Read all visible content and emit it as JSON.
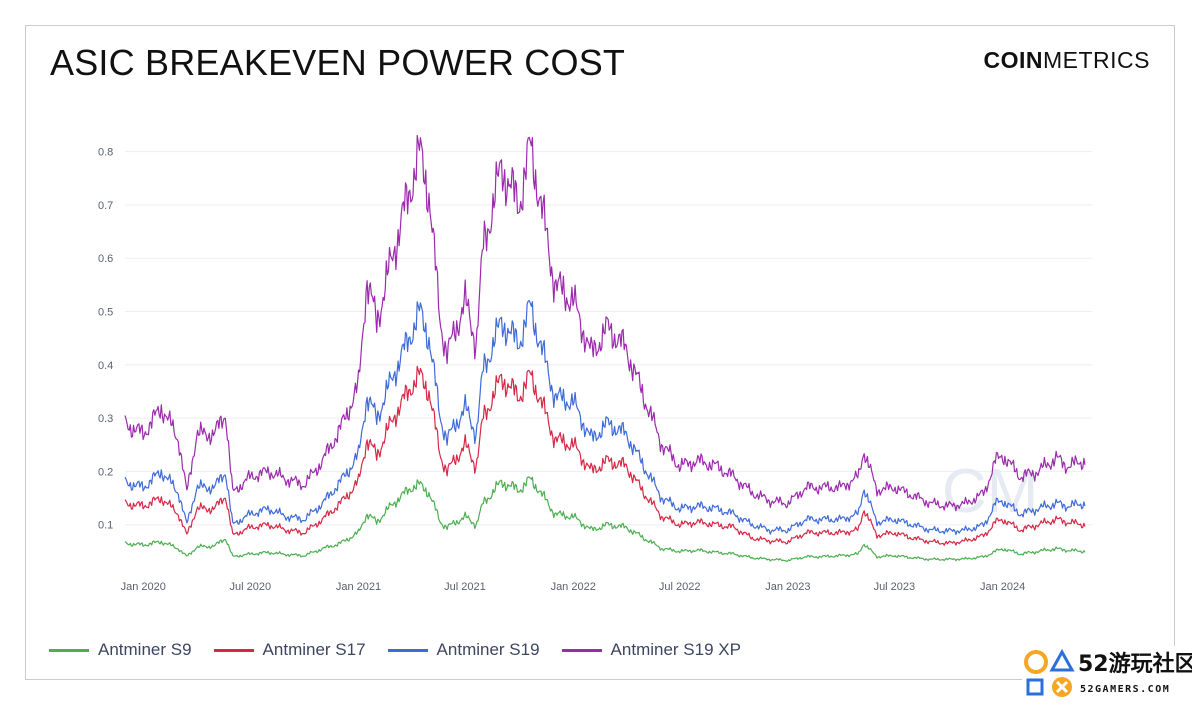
{
  "header": {
    "title": "ASIC BREAKEVEN POWER COST",
    "brand_bold": "COIN",
    "brand_light": "METRICS"
  },
  "chart_data": {
    "type": "line",
    "title": "ASIC BREAKEVEN POWER COST",
    "xlabel": "",
    "ylabel": "",
    "x_range": [
      "2019-12-01",
      "2024-06-01"
    ],
    "ylim": [
      0,
      0.85
    ],
    "y_ticks": [
      0.1,
      0.2,
      0.3,
      0.4,
      0.5,
      0.6,
      0.7,
      0.8
    ],
    "y_tick_labels": [
      "0.1",
      "0.2",
      "0.3",
      "0.4",
      "0.5",
      "0.6",
      "0.7",
      "0.8"
    ],
    "x_ticks": [
      "2020-01-01",
      "2020-07-01",
      "2021-01-01",
      "2021-07-01",
      "2022-01-01",
      "2022-07-01",
      "2023-01-01",
      "2023-07-01",
      "2024-01-01"
    ],
    "x_tick_labels": [
      "Jan 2020",
      "Jul 2020",
      "Jan 2021",
      "Jul 2021",
      "Jan 2022",
      "Jul 2022",
      "Jan 2023",
      "Jul 2023",
      "Jan 2024"
    ],
    "grid": true,
    "legend_position": "bottom",
    "dates": [
      "2019-12-01",
      "2020-01-01",
      "2020-02-01",
      "2020-03-01",
      "2020-03-15",
      "2020-04-01",
      "2020-05-01",
      "2020-05-20",
      "2020-06-01",
      "2020-07-01",
      "2020-08-01",
      "2020-09-01",
      "2020-10-01",
      "2020-11-01",
      "2020-12-01",
      "2021-01-01",
      "2021-01-15",
      "2021-02-01",
      "2021-03-01",
      "2021-04-01",
      "2021-04-15",
      "2021-05-01",
      "2021-05-20",
      "2021-06-01",
      "2021-07-01",
      "2021-07-20",
      "2021-08-01",
      "2021-09-01",
      "2021-10-01",
      "2021-10-20",
      "2021-11-01",
      "2021-12-01",
      "2022-01-01",
      "2022-02-01",
      "2022-03-01",
      "2022-04-01",
      "2022-05-01",
      "2022-06-01",
      "2022-07-01",
      "2022-08-01",
      "2022-09-01",
      "2022-10-01",
      "2022-11-01",
      "2022-12-01",
      "2023-01-01",
      "2023-02-01",
      "2023-03-01",
      "2023-04-01",
      "2023-05-01",
      "2023-05-10",
      "2023-06-01",
      "2023-07-01",
      "2023-08-01",
      "2023-09-01",
      "2023-10-01",
      "2023-11-01",
      "2023-12-01",
      "2023-12-20",
      "2024-01-01",
      "2024-02-01",
      "2024-03-01",
      "2024-04-01",
      "2024-04-20",
      "2024-05-20"
    ],
    "series": [
      {
        "name": "Antminer S9",
        "color": "#4caf50",
        "values": [
          0.065,
          0.062,
          0.068,
          0.055,
          0.04,
          0.058,
          0.06,
          0.075,
          0.04,
          0.045,
          0.048,
          0.044,
          0.042,
          0.055,
          0.065,
          0.085,
          0.12,
          0.105,
          0.14,
          0.17,
          0.175,
          0.16,
          0.105,
          0.095,
          0.115,
          0.1,
          0.14,
          0.18,
          0.165,
          0.185,
          0.17,
          0.12,
          0.115,
          0.09,
          0.1,
          0.095,
          0.075,
          0.055,
          0.05,
          0.052,
          0.048,
          0.045,
          0.038,
          0.035,
          0.033,
          0.04,
          0.04,
          0.042,
          0.045,
          0.065,
          0.04,
          0.042,
          0.038,
          0.035,
          0.035,
          0.036,
          0.04,
          0.05,
          0.055,
          0.045,
          0.05,
          0.055,
          0.052,
          0.05
        ]
      },
      {
        "name": "Antminer S17",
        "color": "#d62846",
        "values": [
          0.14,
          0.135,
          0.15,
          0.12,
          0.08,
          0.13,
          0.13,
          0.155,
          0.08,
          0.095,
          0.1,
          0.09,
          0.085,
          0.11,
          0.14,
          0.18,
          0.26,
          0.23,
          0.3,
          0.36,
          0.38,
          0.35,
          0.23,
          0.2,
          0.25,
          0.21,
          0.3,
          0.375,
          0.34,
          0.38,
          0.35,
          0.26,
          0.25,
          0.2,
          0.22,
          0.21,
          0.16,
          0.115,
          0.1,
          0.105,
          0.1,
          0.095,
          0.075,
          0.07,
          0.068,
          0.085,
          0.085,
          0.085,
          0.09,
          0.13,
          0.08,
          0.085,
          0.075,
          0.068,
          0.065,
          0.07,
          0.08,
          0.105,
          0.11,
          0.09,
          0.1,
          0.11,
          0.105,
          0.1
        ]
      },
      {
        "name": "Antminer S19",
        "color": "#3f6ad8",
        "values": [
          0.18,
          0.17,
          0.2,
          0.16,
          0.1,
          0.17,
          0.17,
          0.2,
          0.1,
          0.12,
          0.13,
          0.115,
          0.11,
          0.14,
          0.18,
          0.23,
          0.34,
          0.3,
          0.38,
          0.46,
          0.5,
          0.45,
          0.3,
          0.26,
          0.32,
          0.27,
          0.39,
          0.48,
          0.44,
          0.51,
          0.46,
          0.34,
          0.33,
          0.26,
          0.29,
          0.27,
          0.21,
          0.15,
          0.13,
          0.135,
          0.13,
          0.12,
          0.1,
          0.09,
          0.09,
          0.11,
          0.11,
          0.11,
          0.12,
          0.17,
          0.105,
          0.11,
          0.1,
          0.09,
          0.088,
          0.09,
          0.1,
          0.14,
          0.145,
          0.12,
          0.13,
          0.14,
          0.135,
          0.14
        ]
      },
      {
        "name": "Antminer S19 XP",
        "color": "#9b2bac",
        "values": [
          0.29,
          0.27,
          0.32,
          0.26,
          0.16,
          0.27,
          0.27,
          0.31,
          0.16,
          0.19,
          0.2,
          0.185,
          0.175,
          0.22,
          0.28,
          0.36,
          0.56,
          0.48,
          0.61,
          0.74,
          0.8,
          0.72,
          0.48,
          0.42,
          0.52,
          0.44,
          0.62,
          0.77,
          0.7,
          0.81,
          0.74,
          0.55,
          0.52,
          0.42,
          0.47,
          0.43,
          0.34,
          0.25,
          0.21,
          0.22,
          0.21,
          0.19,
          0.16,
          0.145,
          0.14,
          0.17,
          0.17,
          0.17,
          0.19,
          0.24,
          0.165,
          0.17,
          0.155,
          0.14,
          0.135,
          0.14,
          0.16,
          0.22,
          0.23,
          0.19,
          0.2,
          0.225,
          0.21,
          0.22
        ]
      }
    ]
  }
}
